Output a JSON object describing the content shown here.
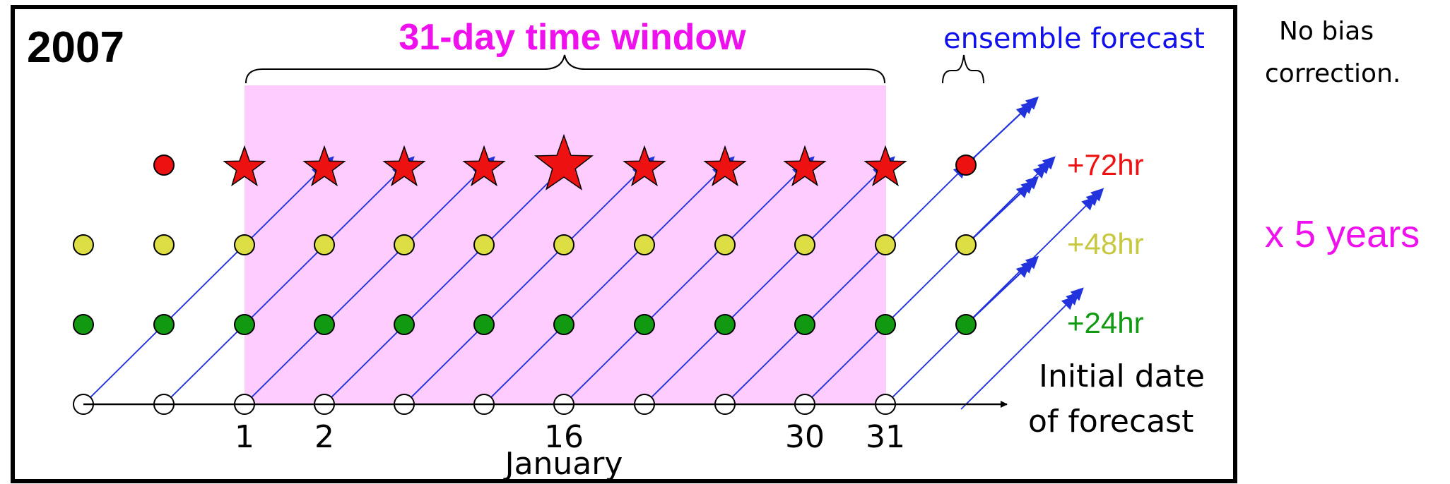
{
  "year": "2007",
  "window_title": "31-day time window",
  "ensemble_label": "ensemble forecast",
  "lead_times": [
    {
      "label": "+72hr",
      "color": "#ee1111"
    },
    {
      "label": "+48hr",
      "color": "#c8c840"
    },
    {
      "label": "+24hr",
      "color": "#119911"
    }
  ],
  "axis_label_line1": "Initial date",
  "axis_label_line2": "of forecast",
  "month_label": "January",
  "day_labels": [
    "1",
    "2",
    "16",
    "30",
    "31"
  ],
  "note_line1": "No bias",
  "note_line2": "correction.",
  "multiplier": "x 5 years",
  "colors": {
    "window_fill": "#ffccff",
    "title_magenta": "#ee11ee",
    "ensemble_blue": "#1111ee",
    "arrow_blue": "#2233dd",
    "star_red": "#ee1111",
    "dot_red": "#ee1111",
    "dot_yellow": "#dddd44",
    "dot_green": "#119911",
    "frame": "#000000"
  }
}
